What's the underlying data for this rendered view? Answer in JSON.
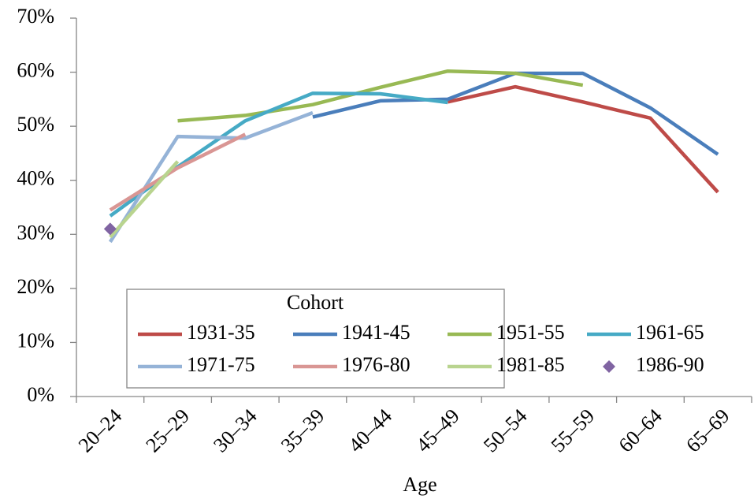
{
  "chart_data": {
    "type": "line",
    "x_label": "Age",
    "legend_title": "Cohort",
    "legend": "bottom",
    "grid": false,
    "categories": [
      "20–24",
      "25–29",
      "30–34",
      "35–39",
      "40–44",
      "45–49",
      "50–54",
      "55–59",
      "60–64",
      "65–69"
    ],
    "ylim": [
      0,
      70
    ],
    "yticks": [
      {
        "value": 0,
        "label": "0%"
      },
      {
        "value": 10,
        "label": "10%"
      },
      {
        "value": 20,
        "label": "20%"
      },
      {
        "value": 30,
        "label": "30%"
      },
      {
        "value": 40,
        "label": "40%"
      },
      {
        "value": 50,
        "label": "50%"
      },
      {
        "value": 60,
        "label": "60%"
      },
      {
        "value": 70,
        "label": "70%"
      }
    ],
    "series": [
      {
        "name": "1931-35",
        "color": "#be4b48",
        "values": [
          null,
          null,
          null,
          null,
          null,
          54.5,
          57.3,
          54.5,
          51.5,
          37.8
        ]
      },
      {
        "name": "1941-45",
        "color": "#4a7ebb",
        "values": [
          null,
          null,
          null,
          51.7,
          54.7,
          55,
          59.8,
          59.8,
          53.4,
          44.8
        ]
      },
      {
        "name": "1951-55",
        "color": "#98b954",
        "values": [
          null,
          51,
          52,
          54,
          57.2,
          60.2,
          59.8,
          57.6,
          null,
          null
        ]
      },
      {
        "name": "1961-65",
        "color": "#46aac5",
        "values": [
          33.4,
          42.5,
          51,
          56.1,
          56,
          54.4,
          null,
          null,
          null,
          null
        ]
      },
      {
        "name": "1971-75",
        "color": "#95b3d7",
        "values": [
          28.6,
          48.1,
          47.8,
          52.5,
          null,
          null,
          null,
          null,
          null,
          null
        ]
      },
      {
        "name": "1976-80",
        "color": "#d99694",
        "values": [
          34.5,
          42.3,
          48.5,
          null,
          null,
          null,
          null,
          null,
          null,
          null
        ]
      },
      {
        "name": "1981-85",
        "color": "#b9d48f",
        "values": [
          29.5,
          43.5,
          null,
          null,
          null,
          null,
          null,
          null,
          null,
          null
        ]
      },
      {
        "name": "1986-90",
        "color": "#8064a2",
        "marker": "diamond",
        "values": [
          31,
          null,
          null,
          null,
          null,
          null,
          null,
          null,
          null,
          null
        ]
      }
    ]
  }
}
